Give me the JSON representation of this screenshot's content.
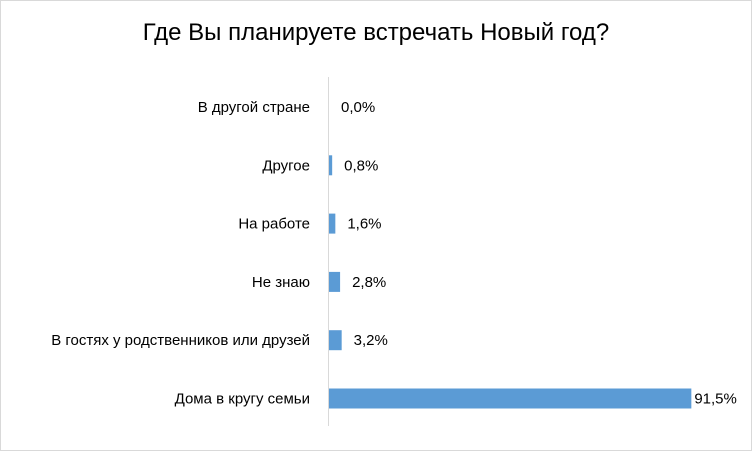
{
  "chart_data": {
    "type": "bar",
    "orientation": "horizontal",
    "title": "Где Вы планируете встречать Новый год?",
    "categories": [
      "В другой стране",
      "Другое",
      "На работе",
      "Не знаю",
      "В гостях у родственников или друзей",
      "Дома в кругу семьи"
    ],
    "values": [
      0.0,
      0.8,
      1.6,
      2.8,
      3.2,
      91.5
    ],
    "value_labels": [
      "0,0%",
      "0,8%",
      "1,6%",
      "2,8%",
      "3,2%",
      "91,5%"
    ],
    "xlabel": "",
    "ylabel": "",
    "xlim": [
      0,
      100
    ],
    "grid": false,
    "legend": "none",
    "bar_color": "#5b9bd5",
    "axis_color": "#d9d9d9"
  }
}
